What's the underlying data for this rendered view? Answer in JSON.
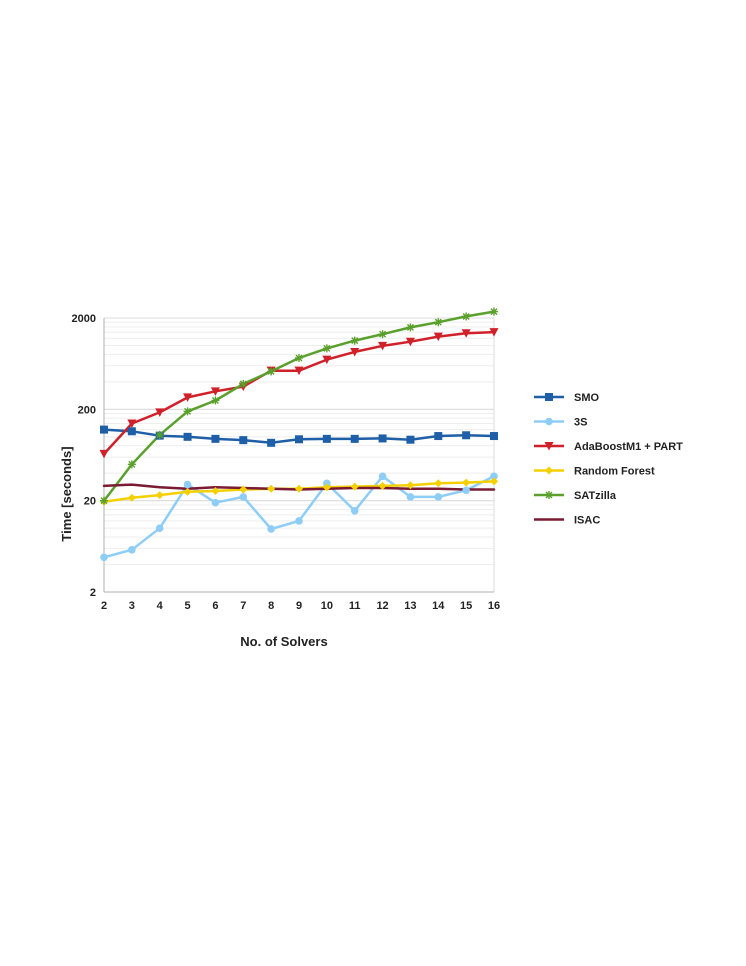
{
  "chart_data": {
    "type": "line",
    "xlabel": "No. of Solvers",
    "ylabel": "Time  [seconds]",
    "y_scale": "log",
    "ylim": [
      2,
      2000
    ],
    "y_ticks": [
      2,
      20,
      200,
      2000
    ],
    "x": [
      2,
      3,
      4,
      5,
      6,
      7,
      8,
      9,
      10,
      11,
      12,
      13,
      14,
      15,
      16
    ],
    "grid": "horizontal minor gridlines",
    "legend_position": "right",
    "series": [
      {
        "name": "SMO",
        "color": "#1f5fa8",
        "marker": "square",
        "values": [
          120,
          115,
          103,
          100,
          95,
          92,
          86,
          94,
          95,
          95,
          96,
          93,
          102,
          104,
          102
        ]
      },
      {
        "name": "3S",
        "color": "#8ecdf5",
        "marker": "circle",
        "values": [
          4.8,
          5.8,
          10.0,
          30.0,
          19.0,
          22.0,
          9.8,
          12.0,
          31.0,
          15.5,
          37.0,
          22.0,
          22.0,
          26.0,
          37.0
        ]
      },
      {
        "name": "AdaBoostM1 + PART",
        "color": "#d0202a",
        "marker": "triangle-down",
        "values": [
          65,
          140,
          185,
          270,
          315,
          355,
          530,
          530,
          700,
          850,
          990,
          1100,
          1250,
          1360,
          1400
        ]
      },
      {
        "name": "Random Forest",
        "color": "#f5d000",
        "marker": "diamond",
        "values": [
          19.5,
          21.5,
          23.0,
          25.0,
          25.5,
          26.5,
          27.0,
          27.0,
          28.0,
          28.5,
          29.0,
          29.5,
          31.0,
          31.5,
          32.5
        ]
      },
      {
        "name": "SATzilla",
        "color": "#5aa02c",
        "marker": "star",
        "values": [
          20,
          50,
          105,
          190,
          250,
          380,
          520,
          730,
          930,
          1130,
          1330,
          1580,
          1800,
          2080,
          2350
        ]
      },
      {
        "name": "ISAC",
        "color": "#7a1a33",
        "marker": "none",
        "values": [
          29.0,
          30.0,
          28.0,
          27.0,
          28.0,
          27.5,
          27.0,
          26.5,
          27.0,
          27.5,
          27.5,
          27.0,
          27.0,
          26.5,
          26.5
        ]
      }
    ]
  }
}
